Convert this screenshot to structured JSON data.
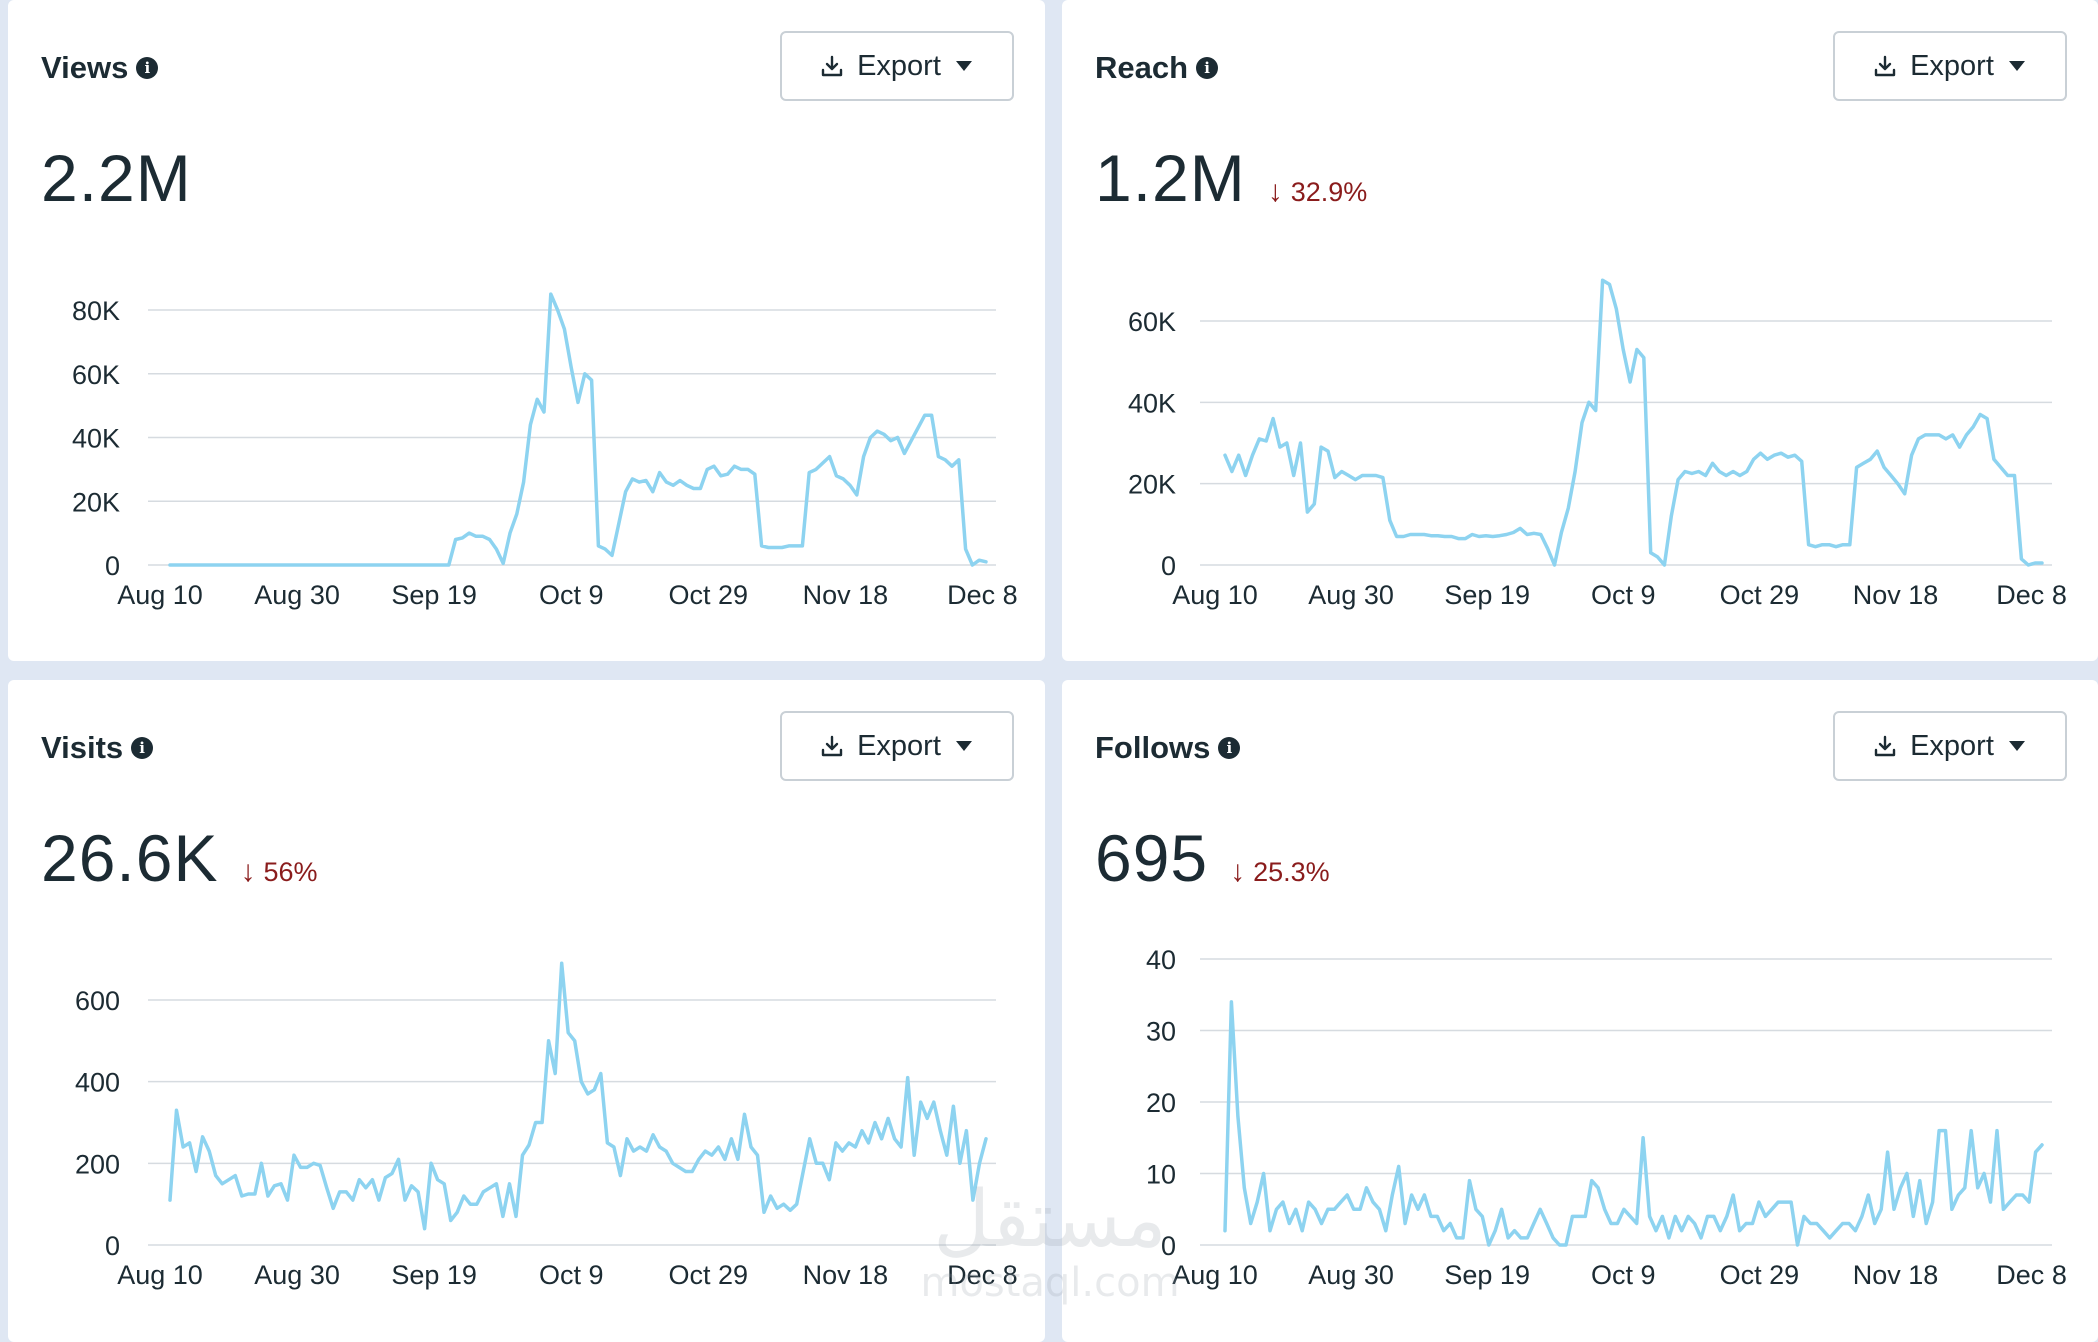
{
  "export_label": "Export",
  "colors": {
    "line": "#8dd3f0",
    "grid": "#d6dbe0",
    "negative": "#8a1c1c",
    "text": "#1c2b33"
  },
  "icons": {
    "info": "info-icon",
    "export": "download-icon",
    "caret": "caret-down-icon",
    "delta": "arrow-down-icon"
  },
  "watermark": {
    "arabic": "مستقل",
    "latin": "mostaql.com"
  },
  "cards": [
    {
      "title": "Views",
      "value": "2.2M",
      "delta": ""
    },
    {
      "title": "Reach",
      "value": "1.2M",
      "delta": "32.9%"
    },
    {
      "title": "Visits",
      "value": "26.6K",
      "delta": "56%"
    },
    {
      "title": "Follows",
      "value": "695",
      "delta": "25.3%"
    }
  ],
  "chart_data": [
    {
      "type": "line",
      "title": "Views",
      "xlabel": "",
      "ylabel": "",
      "x_ticks": [
        "Aug 10",
        "Aug 30",
        "Sep 19",
        "Oct 9",
        "Oct 29",
        "Nov 18",
        "Dec 8"
      ],
      "y_ticks": [
        "0",
        "20K",
        "40K",
        "60K",
        "80K"
      ],
      "ylim": [
        0,
        80000
      ],
      "grid": true,
      "series": [
        {
          "values": [
            0,
            0,
            0,
            0,
            0,
            0,
            0,
            0,
            0,
            0,
            0,
            0,
            0,
            0,
            0,
            0,
            0,
            0,
            0,
            0,
            0,
            0,
            0,
            0,
            0,
            0,
            0,
            0,
            0,
            0,
            0,
            0,
            0,
            0,
            0,
            0,
            0,
            0,
            0,
            0,
            0,
            0,
            8000,
            8500,
            10000,
            9000,
            9000,
            8000,
            5000,
            500,
            10000,
            16000,
            26000,
            44000,
            52000,
            48000,
            85000,
            80000,
            74000,
            62000,
            51000,
            60000,
            58000,
            6000,
            5000,
            3000,
            13000,
            23000,
            27000,
            26000,
            26500,
            23000,
            29000,
            26000,
            25000,
            26500,
            25000,
            24000,
            24000,
            30000,
            31000,
            28000,
            28500,
            31000,
            30000,
            30000,
            28500,
            6000,
            5500,
            5500,
            5500,
            6000,
            6000,
            6000,
            29000,
            30000,
            32000,
            34000,
            28000,
            27000,
            25000,
            22000,
            34000,
            40000,
            42000,
            41000,
            39000,
            40000,
            35000,
            39000,
            43000,
            47000,
            47000,
            34000,
            33000,
            31000,
            33000,
            5000,
            0,
            1500,
            1000
          ]
        }
      ]
    },
    {
      "type": "line",
      "title": "Reach",
      "xlabel": "",
      "ylabel": "",
      "x_ticks": [
        "Aug 10",
        "Aug 30",
        "Sep 19",
        "Oct 9",
        "Oct 29",
        "Nov 18",
        "Dec 8"
      ],
      "y_ticks": [
        "0",
        "20K",
        "40K",
        "60K"
      ],
      "ylim": [
        0,
        60000
      ],
      "grid": true,
      "series": [
        {
          "values": [
            27000,
            23000,
            27000,
            22000,
            27000,
            31000,
            30500,
            36000,
            29000,
            30000,
            22000,
            30000,
            13000,
            15000,
            29000,
            28000,
            21500,
            23000,
            22000,
            21000,
            22000,
            22000,
            22000,
            21500,
            11000,
            7000,
            7000,
            7500,
            7500,
            7500,
            7200,
            7200,
            7000,
            7000,
            6500,
            6500,
            7500,
            7000,
            7200,
            7000,
            7200,
            7500,
            8000,
            9000,
            7500,
            7800,
            7500,
            4000,
            0,
            8000,
            14000,
            23000,
            35000,
            40000,
            38000,
            70000,
            69000,
            63000,
            53000,
            45000,
            53000,
            51000,
            3000,
            2000,
            0,
            12000,
            21000,
            23000,
            22500,
            23000,
            22000,
            25000,
            23000,
            22000,
            23000,
            22000,
            23000,
            26000,
            27500,
            26000,
            27000,
            27500,
            26500,
            27000,
            25500,
            5000,
            4500,
            5000,
            5000,
            4500,
            5000,
            5000,
            24000,
            25000,
            26000,
            28000,
            24000,
            22000,
            20000,
            17500,
            27000,
            31000,
            32000,
            32000,
            32000,
            31000,
            32000,
            29000,
            32000,
            34000,
            37000,
            36000,
            26000,
            24000,
            22000,
            22000,
            1500,
            0,
            500,
            500
          ]
        }
      ]
    },
    {
      "type": "line",
      "title": "Visits",
      "xlabel": "",
      "ylabel": "",
      "x_ticks": [
        "Aug 10",
        "Aug 30",
        "Sep 19",
        "Oct 9",
        "Oct 29",
        "Nov 18",
        "Dec 8"
      ],
      "y_ticks": [
        "0",
        "200",
        "400",
        "600"
      ],
      "ylim": [
        0,
        600
      ],
      "grid": true,
      "series": [
        {
          "values": [
            110,
            330,
            240,
            250,
            180,
            265,
            230,
            170,
            150,
            160,
            170,
            120,
            125,
            125,
            200,
            120,
            145,
            150,
            110,
            220,
            190,
            190,
            200,
            195,
            140,
            90,
            130,
            130,
            110,
            160,
            140,
            160,
            110,
            165,
            175,
            210,
            110,
            145,
            130,
            40,
            200,
            160,
            150,
            60,
            80,
            120,
            100,
            100,
            130,
            140,
            150,
            70,
            150,
            70,
            220,
            245,
            300,
            300,
            500,
            420,
            690,
            520,
            500,
            400,
            370,
            380,
            420,
            250,
            240,
            170,
            260,
            230,
            240,
            230,
            270,
            240,
            230,
            200,
            190,
            180,
            180,
            210,
            230,
            220,
            240,
            210,
            260,
            210,
            320,
            240,
            220,
            80,
            120,
            90,
            100,
            85,
            100,
            180,
            260,
            200,
            200,
            160,
            250,
            230,
            250,
            240,
            280,
            250,
            300,
            260,
            310,
            260,
            240,
            410,
            220,
            350,
            310,
            350,
            280,
            220,
            340,
            200,
            280,
            110,
            200,
            260
          ]
        }
      ]
    },
    {
      "type": "line",
      "title": "Follows",
      "xlabel": "",
      "ylabel": "",
      "x_ticks": [
        "Aug 10",
        "Aug 30",
        "Sep 19",
        "Oct 9",
        "Oct 29",
        "Nov 18",
        "Dec 8"
      ],
      "y_ticks": [
        "0",
        "10",
        "20",
        "30",
        "40"
      ],
      "ylim": [
        0,
        40
      ],
      "grid": true,
      "series": [
        {
          "values": [
            2,
            34,
            18,
            8,
            3,
            6,
            10,
            2,
            5,
            6,
            3,
            5,
            2,
            6,
            5,
            3,
            5,
            5,
            6,
            7,
            5,
            5,
            8,
            6,
            5,
            2,
            7,
            11,
            3,
            7,
            5,
            7,
            4,
            4,
            2,
            3,
            1,
            1,
            9,
            5,
            4,
            0,
            2,
            5,
            1,
            2,
            1,
            1,
            3,
            5,
            3,
            1,
            0,
            0,
            4,
            4,
            4,
            9,
            8,
            5,
            3,
            3,
            5,
            4,
            3,
            15,
            4,
            2,
            4,
            1,
            4,
            2,
            4,
            3,
            1,
            4,
            4,
            2,
            4,
            7,
            2,
            3,
            3,
            6,
            4,
            5,
            6,
            6,
            6,
            0,
            4,
            3,
            3,
            2,
            1,
            2,
            3,
            3,
            2,
            4,
            7,
            3,
            5,
            13,
            5,
            8,
            10,
            4,
            9,
            3,
            6,
            16,
            16,
            5,
            7,
            8,
            16,
            8,
            10,
            6,
            16,
            5,
            6,
            7,
            7,
            6,
            13,
            14
          ]
        }
      ]
    }
  ]
}
